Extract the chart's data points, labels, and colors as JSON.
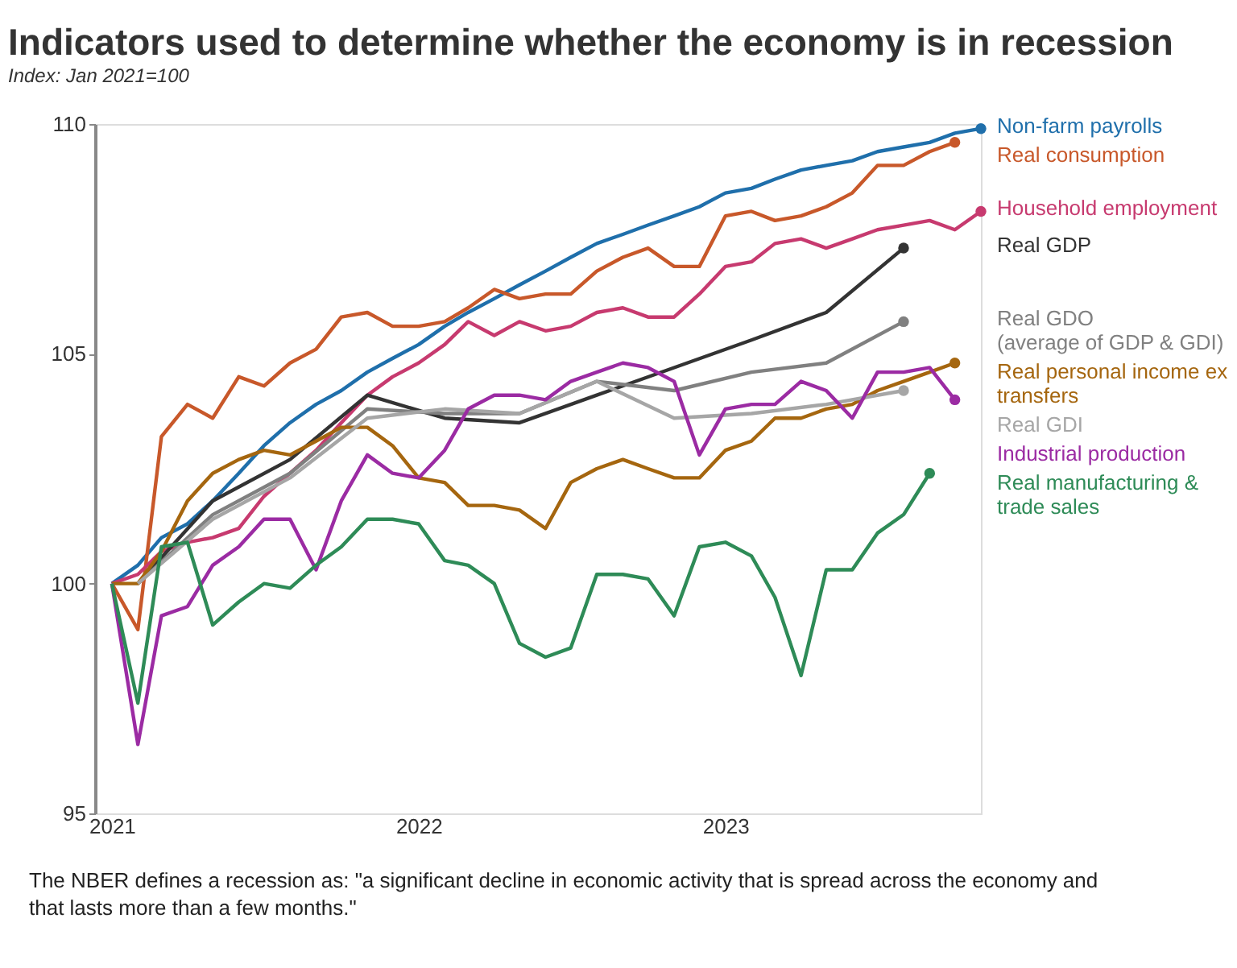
{
  "chart_data": {
    "type": "line",
    "title": "Indicators used to determine whether the economy is in recession",
    "subtitle": "Index: Jan 2021=100",
    "xlim": [
      "2020-12-12",
      "2023-11-01"
    ],
    "xticks": [
      "2021",
      "2022",
      "2023"
    ],
    "ylim": [
      95,
      110
    ],
    "yticks": [
      95,
      100,
      105,
      110
    ],
    "grid": false,
    "legend": false,
    "line_style": "solid",
    "x": [
      "2021-01",
      "2021-02",
      "2021-03",
      "2021-04",
      "2021-05",
      "2021-06",
      "2021-07",
      "2021-08",
      "2021-09",
      "2021-10",
      "2021-11",
      "2021-12",
      "2022-01",
      "2022-02",
      "2022-03",
      "2022-04",
      "2022-05",
      "2022-06",
      "2022-07",
      "2022-08",
      "2022-09",
      "2022-10",
      "2022-11",
      "2022-12",
      "2023-01",
      "2023-02",
      "2023-03",
      "2023-04",
      "2023-05",
      "2023-06",
      "2023-07",
      "2023-08",
      "2023-09",
      "2023-10",
      "2023-11"
    ],
    "series": [
      {
        "name": "Non-farm payrolls",
        "color": "#1f6fab",
        "values": [
          100,
          100.4,
          101.0,
          101.3,
          101.8,
          102.4,
          103.0,
          103.5,
          103.9,
          104.2,
          104.6,
          104.9,
          105.2,
          105.6,
          105.9,
          106.2,
          106.5,
          106.8,
          107.1,
          107.4,
          107.6,
          107.8,
          108.0,
          108.2,
          108.5,
          108.6,
          108.8,
          109.0,
          109.1,
          109.2,
          109.4,
          109.5,
          109.6,
          109.8,
          109.9
        ]
      },
      {
        "name": "Real consumption",
        "color": "#c8582a",
        "values": [
          100,
          99.0,
          103.2,
          103.9,
          103.6,
          104.5,
          104.3,
          104.8,
          105.1,
          105.8,
          105.9,
          105.6,
          105.6,
          105.7,
          106.0,
          106.4,
          106.2,
          106.3,
          106.3,
          106.8,
          107.1,
          107.3,
          106.9,
          106.9,
          108.0,
          108.1,
          107.9,
          108.0,
          108.2,
          108.5,
          109.1,
          109.1,
          109.4,
          109.6,
          null
        ]
      },
      {
        "name": "Household employment",
        "color": "#c73a6f",
        "values": [
          100,
          100.2,
          100.7,
          100.9,
          101.0,
          101.2,
          101.9,
          102.4,
          102.9,
          103.5,
          104.1,
          104.5,
          104.8,
          105.2,
          105.7,
          105.4,
          105.7,
          105.5,
          105.6,
          105.9,
          106.0,
          105.8,
          105.8,
          106.3,
          106.9,
          107.0,
          107.4,
          107.5,
          107.3,
          107.5,
          107.7,
          107.8,
          107.9,
          107.7,
          108.1
        ]
      },
      {
        "name": "Real GDP",
        "color": "#333333",
        "x": [
          "2021-02",
          "2021-05",
          "2021-08",
          "2021-11",
          "2022-02",
          "2022-05",
          "2022-08",
          "2022-11",
          "2023-02",
          "2023-05",
          "2023-08"
        ],
        "values": [
          100,
          101.8,
          102.7,
          104.1,
          103.6,
          103.5,
          104.1,
          104.7,
          105.3,
          105.9,
          107.3
        ]
      },
      {
        "name": "Real GDO (average of GDP & GDI)",
        "color": "#808080",
        "x": [
          "2021-02",
          "2021-05",
          "2021-08",
          "2021-11",
          "2022-02",
          "2022-05",
          "2022-08",
          "2022-11",
          "2023-02",
          "2023-05",
          "2023-08"
        ],
        "values": [
          100,
          101.5,
          102.4,
          103.8,
          103.7,
          103.7,
          104.4,
          104.2,
          104.6,
          104.8,
          105.7
        ]
      },
      {
        "name": "Real personal income ex transfers",
        "color": "#a5660f",
        "values": [
          100,
          100.0,
          100.7,
          101.8,
          102.4,
          102.7,
          102.9,
          102.8,
          103.1,
          103.4,
          103.4,
          103.0,
          102.3,
          102.2,
          101.7,
          101.7,
          101.6,
          101.2,
          102.2,
          102.5,
          102.7,
          102.5,
          102.3,
          102.3,
          102.9,
          103.1,
          103.6,
          103.6,
          103.8,
          103.9,
          104.2,
          104.4,
          104.6,
          104.8,
          null
        ]
      },
      {
        "name": "Real GDI",
        "color": "#a6a6a6",
        "x": [
          "2021-02",
          "2021-05",
          "2021-08",
          "2021-11",
          "2022-02",
          "2022-05",
          "2022-08",
          "2022-11",
          "2023-02",
          "2023-05",
          "2023-08"
        ],
        "values": [
          100,
          101.4,
          102.3,
          103.6,
          103.8,
          103.7,
          104.4,
          103.6,
          103.7,
          103.9,
          104.2
        ]
      },
      {
        "name": "Industrial production",
        "color": "#9b2ba3",
        "values": [
          100,
          96.5,
          99.3,
          99.5,
          100.4,
          100.8,
          101.4,
          101.4,
          100.3,
          101.8,
          102.8,
          102.4,
          102.3,
          102.9,
          103.8,
          104.1,
          104.1,
          104.0,
          104.4,
          104.6,
          104.8,
          104.7,
          104.4,
          102.8,
          103.8,
          103.9,
          103.9,
          104.4,
          104.2,
          103.6,
          104.6,
          104.6,
          104.7,
          104.0,
          null
        ]
      },
      {
        "name": "Real manufacturing & trade sales",
        "color": "#2e8b57",
        "values": [
          100,
          97.4,
          100.8,
          100.9,
          99.1,
          99.6,
          100.0,
          99.9,
          100.4,
          100.8,
          101.4,
          101.4,
          101.3,
          100.5,
          100.4,
          100.0,
          98.7,
          98.4,
          98.6,
          100.2,
          100.2,
          100.1,
          99.3,
          100.8,
          100.9,
          100.6,
          99.7,
          98.0,
          100.3,
          100.3,
          101.1,
          101.5,
          102.4,
          null,
          null
        ]
      }
    ],
    "annotations": [
      "The NBER defines a recession as: \"a significant decline in economic activity that is spread across the economy and that lasts more than a few months.\""
    ]
  }
}
